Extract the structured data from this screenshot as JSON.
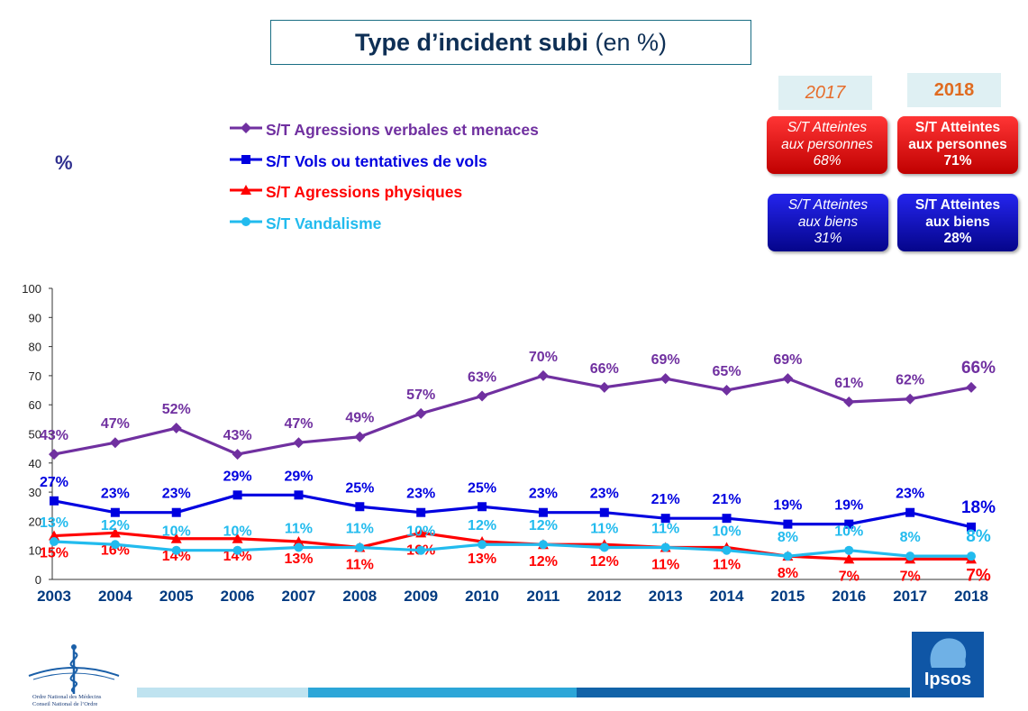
{
  "title": {
    "bold": "Type d’incident subi",
    "rest": " (en %)"
  },
  "unit_label": "%",
  "legend": [
    {
      "label": "S/T Agressions verbales et menaces",
      "color": "#7030a0",
      "marker": "diamond"
    },
    {
      "label": "S/T Vols ou tentatives de vols",
      "color": "#0000e0",
      "marker": "square"
    },
    {
      "label": "S/T Agressions physiques",
      "color": "#ff0000",
      "marker": "triangle"
    },
    {
      "label": "S/T Vandalisme",
      "color": "#22bbee",
      "marker": "circle"
    }
  ],
  "summary": {
    "year_2017": "2017",
    "year_2018": "2018",
    "persons_2017": {
      "line1": "S/T Atteintes",
      "line2": "aux personnes",
      "value": "68%"
    },
    "persons_2018": {
      "line1": "S/T Atteintes",
      "line2": "aux personnes",
      "value": "71%"
    },
    "goods_2017": {
      "line1": "S/T Atteintes",
      "line2": "aux biens",
      "value": "31%"
    },
    "goods_2018": {
      "line1": "S/T Atteintes",
      "line2": "aux biens",
      "value": "28%"
    }
  },
  "chart_data": {
    "type": "line",
    "title": "Type d’incident subi (en %)",
    "xlabel": "",
    "ylabel": "%",
    "ylim": [
      0,
      100
    ],
    "yticks": [
      0,
      10,
      20,
      30,
      40,
      50,
      60,
      70,
      80,
      90,
      100
    ],
    "categories": [
      "2003",
      "2004",
      "2005",
      "2006",
      "2007",
      "2008",
      "2009",
      "2010",
      "2011",
      "2012",
      "2013",
      "2014",
      "2015",
      "2016",
      "2017",
      "2018"
    ],
    "series": [
      {
        "name": "S/T Agressions verbales et menaces",
        "color": "#7030a0",
        "marker": "diamond",
        "values": [
          43,
          47,
          52,
          43,
          47,
          49,
          57,
          63,
          70,
          66,
          69,
          65,
          69,
          61,
          62,
          66
        ]
      },
      {
        "name": "S/T Vols ou tentatives de vols",
        "color": "#0000e0",
        "marker": "square",
        "values": [
          27,
          23,
          23,
          29,
          29,
          25,
          23,
          25,
          23,
          23,
          21,
          21,
          19,
          19,
          23,
          18
        ]
      },
      {
        "name": "S/T Agressions physiques",
        "color": "#ff0000",
        "marker": "triangle",
        "values": [
          15,
          16,
          14,
          14,
          13,
          11,
          16,
          13,
          12,
          12,
          11,
          11,
          8,
          7,
          7,
          7
        ]
      },
      {
        "name": "S/T Vandalisme",
        "color": "#22bbee",
        "marker": "circle",
        "values": [
          13,
          12,
          10,
          10,
          11,
          11,
          10,
          12,
          12,
          11,
          11,
          10,
          8,
          10,
          8,
          8
        ]
      }
    ]
  },
  "footer": {
    "org_line1": "Ordre National des Médecins",
    "org_line2": "Conseil National de l’Ordre",
    "brand": "Ipsos"
  }
}
